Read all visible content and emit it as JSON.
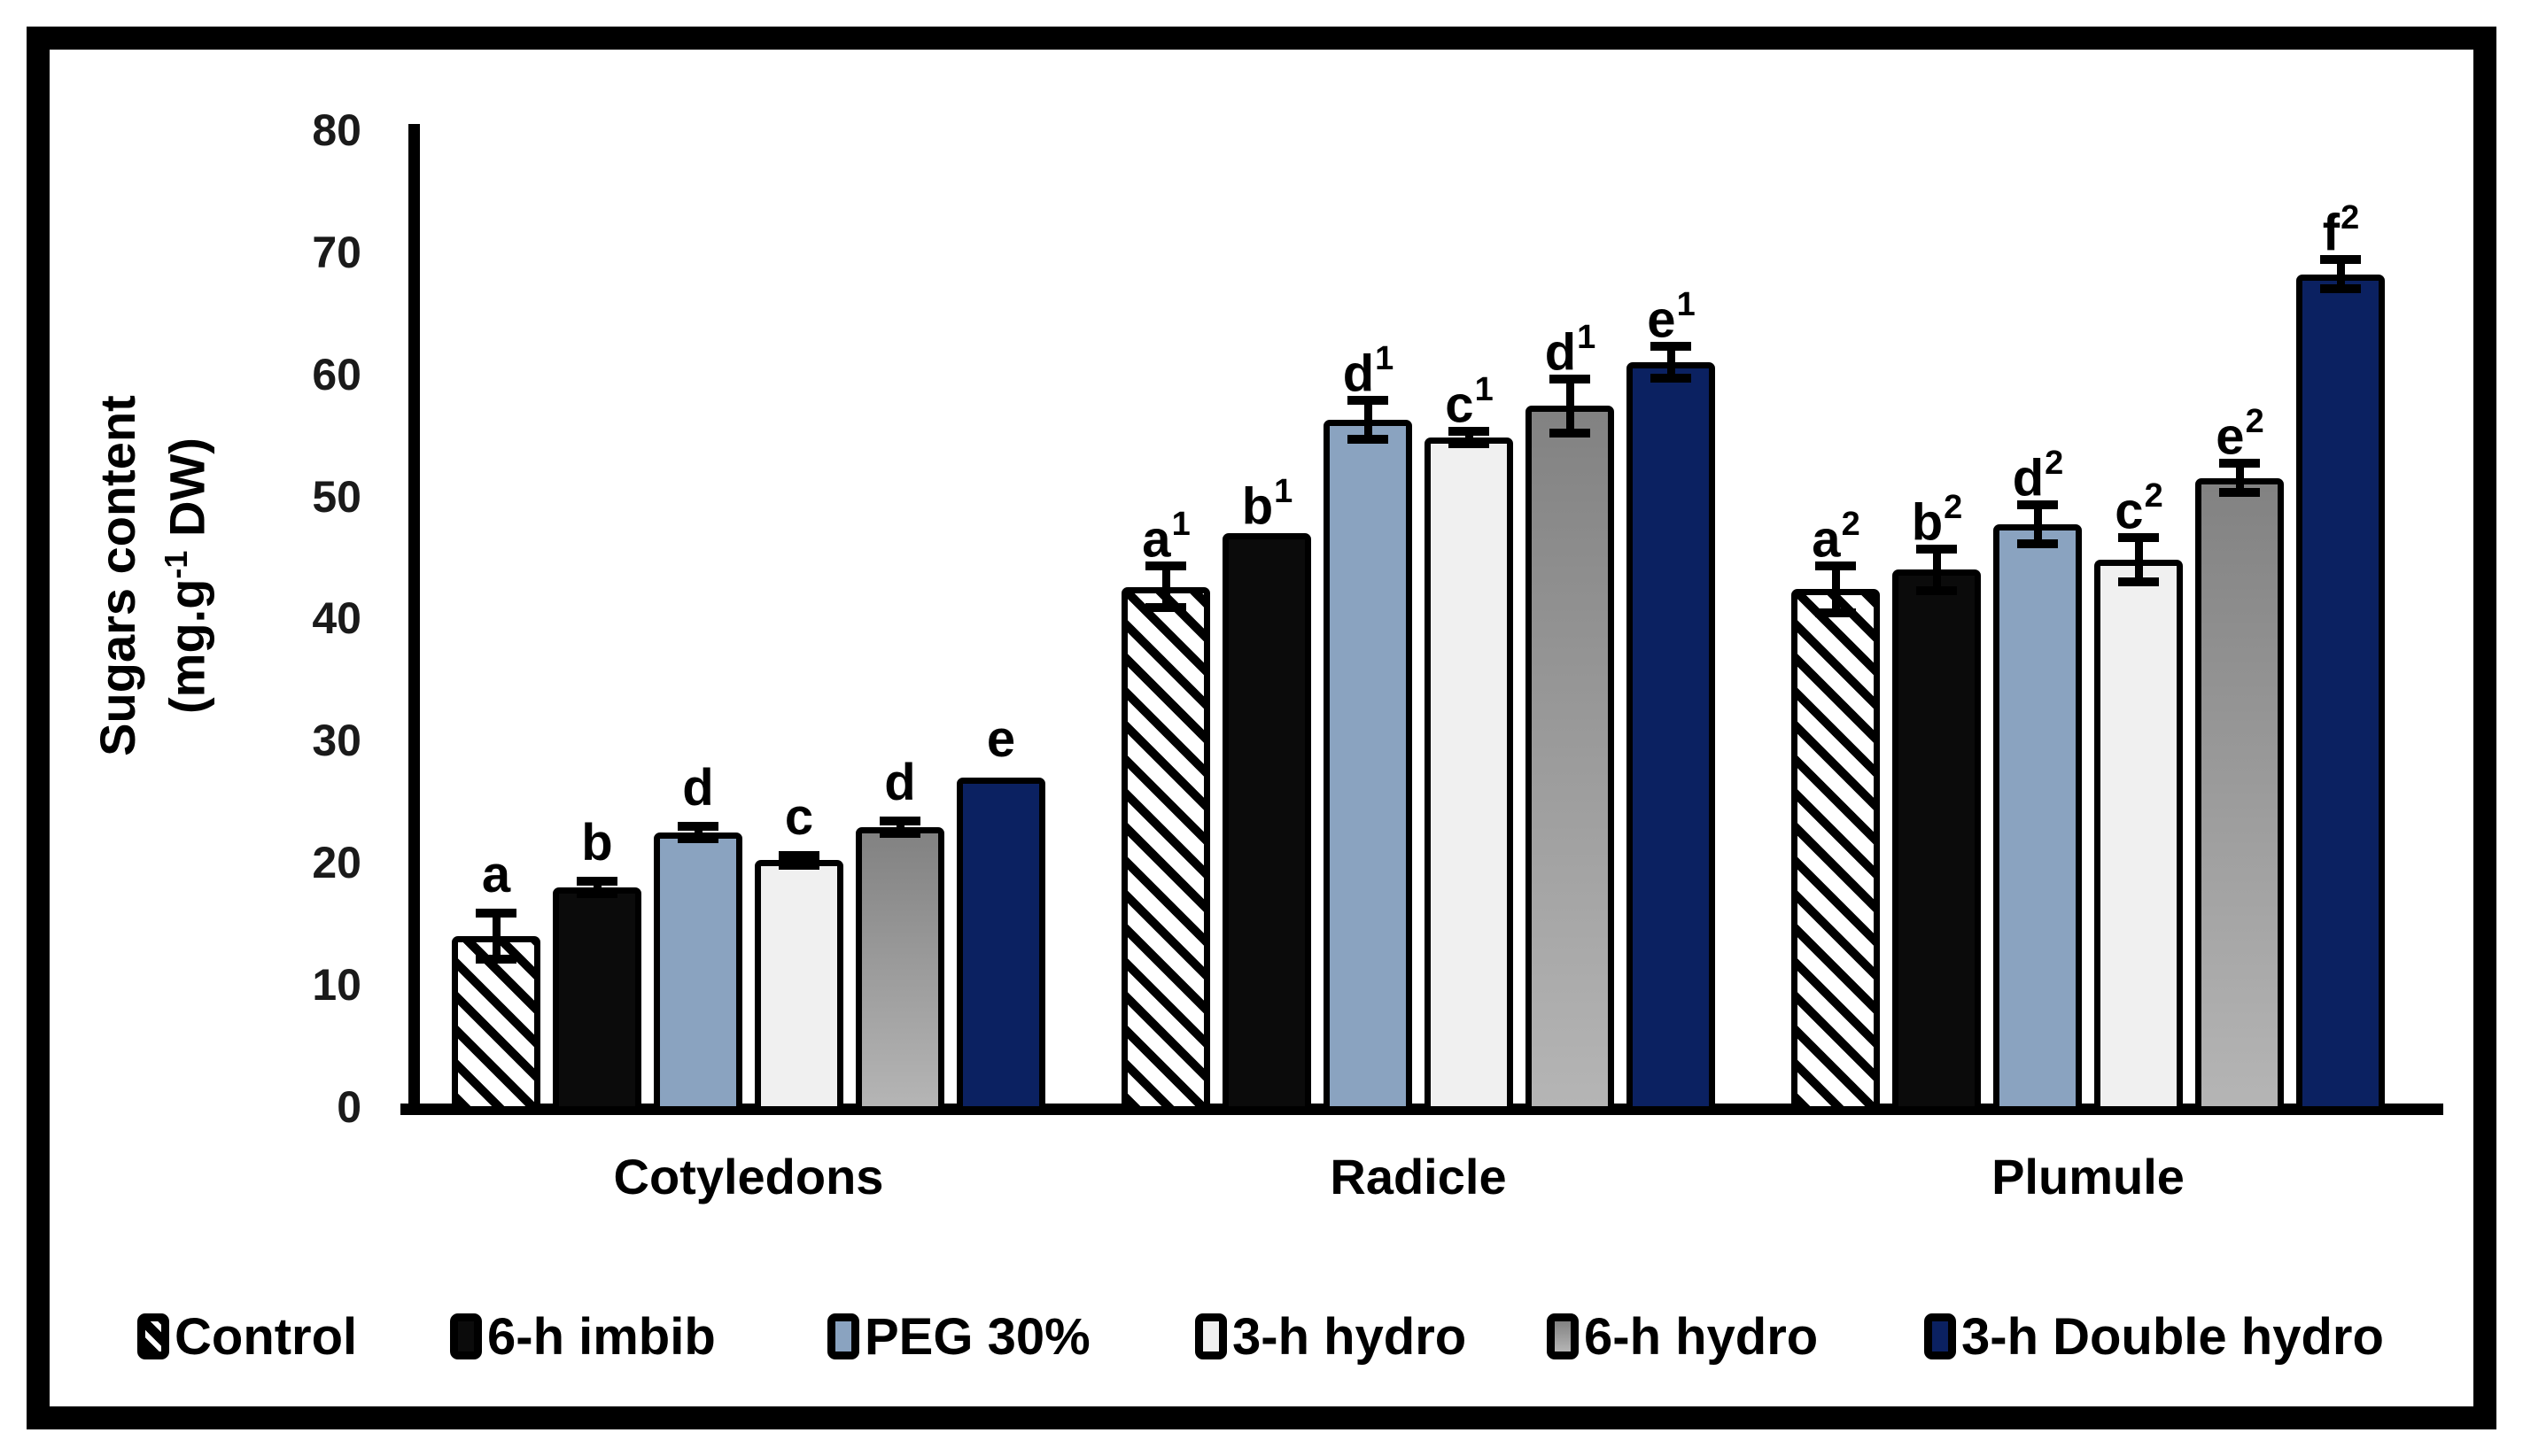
{
  "chart_data": {
    "type": "bar",
    "title": "",
    "ylabel": {
      "line1": "Sugars content",
      "line2_pre": "(mg.g",
      "line2_sup": "-1",
      "line2_post": " DW)"
    },
    "ylim": [
      0,
      80
    ],
    "yticks": [
      0,
      10,
      20,
      30,
      40,
      50,
      60,
      70,
      80
    ],
    "grid": false,
    "legend_position": "bottom",
    "categories": [
      "Cotyledons",
      "Radicle",
      "Plumule"
    ],
    "series": [
      {
        "name": "Control",
        "fill": "hatch",
        "color": "#000000",
        "values": [
          14.0,
          42.6,
          42.4
        ],
        "errors": [
          1.9,
          1.7,
          1.9
        ],
        "letters": [
          [
            "a",
            ""
          ],
          [
            "a",
            "1"
          ],
          [
            "a",
            "2"
          ]
        ]
      },
      {
        "name": "6-h imbib",
        "fill": "black",
        "color": "#0b0b0b",
        "values": [
          18.0,
          47.0,
          44.0
        ],
        "errors": [
          0.5,
          0,
          1.7
        ],
        "letters": [
          [
            "b",
            ""
          ],
          [
            "b",
            "1"
          ],
          [
            "b",
            "2"
          ]
        ]
      },
      {
        "name": "PEG 30%",
        "fill": "blue",
        "color": "#8aa3c0",
        "values": [
          22.5,
          56.3,
          47.7
        ],
        "errors": [
          0.5,
          1.6,
          1.6
        ],
        "letters": [
          [
            "d",
            ""
          ],
          [
            "d",
            "1"
          ],
          [
            "d",
            "2"
          ]
        ]
      },
      {
        "name": "3-h hydro",
        "fill": "white",
        "color": "#f0f0f0",
        "values": [
          20.2,
          54.8,
          44.8
        ],
        "errors": [
          0.4,
          0.5,
          1.8
        ],
        "letters": [
          [
            "c",
            ""
          ],
          [
            "c",
            "1"
          ],
          [
            "c",
            "2"
          ]
        ]
      },
      {
        "name": "6-h hydro",
        "fill": "gray",
        "color": "#9a9a9a",
        "values": [
          22.9,
          57.4,
          51.5
        ],
        "errors": [
          0.5,
          2.2,
          1.2
        ],
        "letters": [
          [
            "d",
            ""
          ],
          [
            "d",
            "1"
          ],
          [
            "e",
            "2"
          ]
        ]
      },
      {
        "name": "3-h Double hydro",
        "fill": "navy",
        "color": "#0b2161",
        "values": [
          27.0,
          61.0,
          68.2
        ],
        "errors": [
          0,
          1.3,
          1.2
        ],
        "letters": [
          [
            "e",
            ""
          ],
          [
            "e",
            "1"
          ],
          [
            "f",
            "2"
          ]
        ]
      }
    ]
  }
}
